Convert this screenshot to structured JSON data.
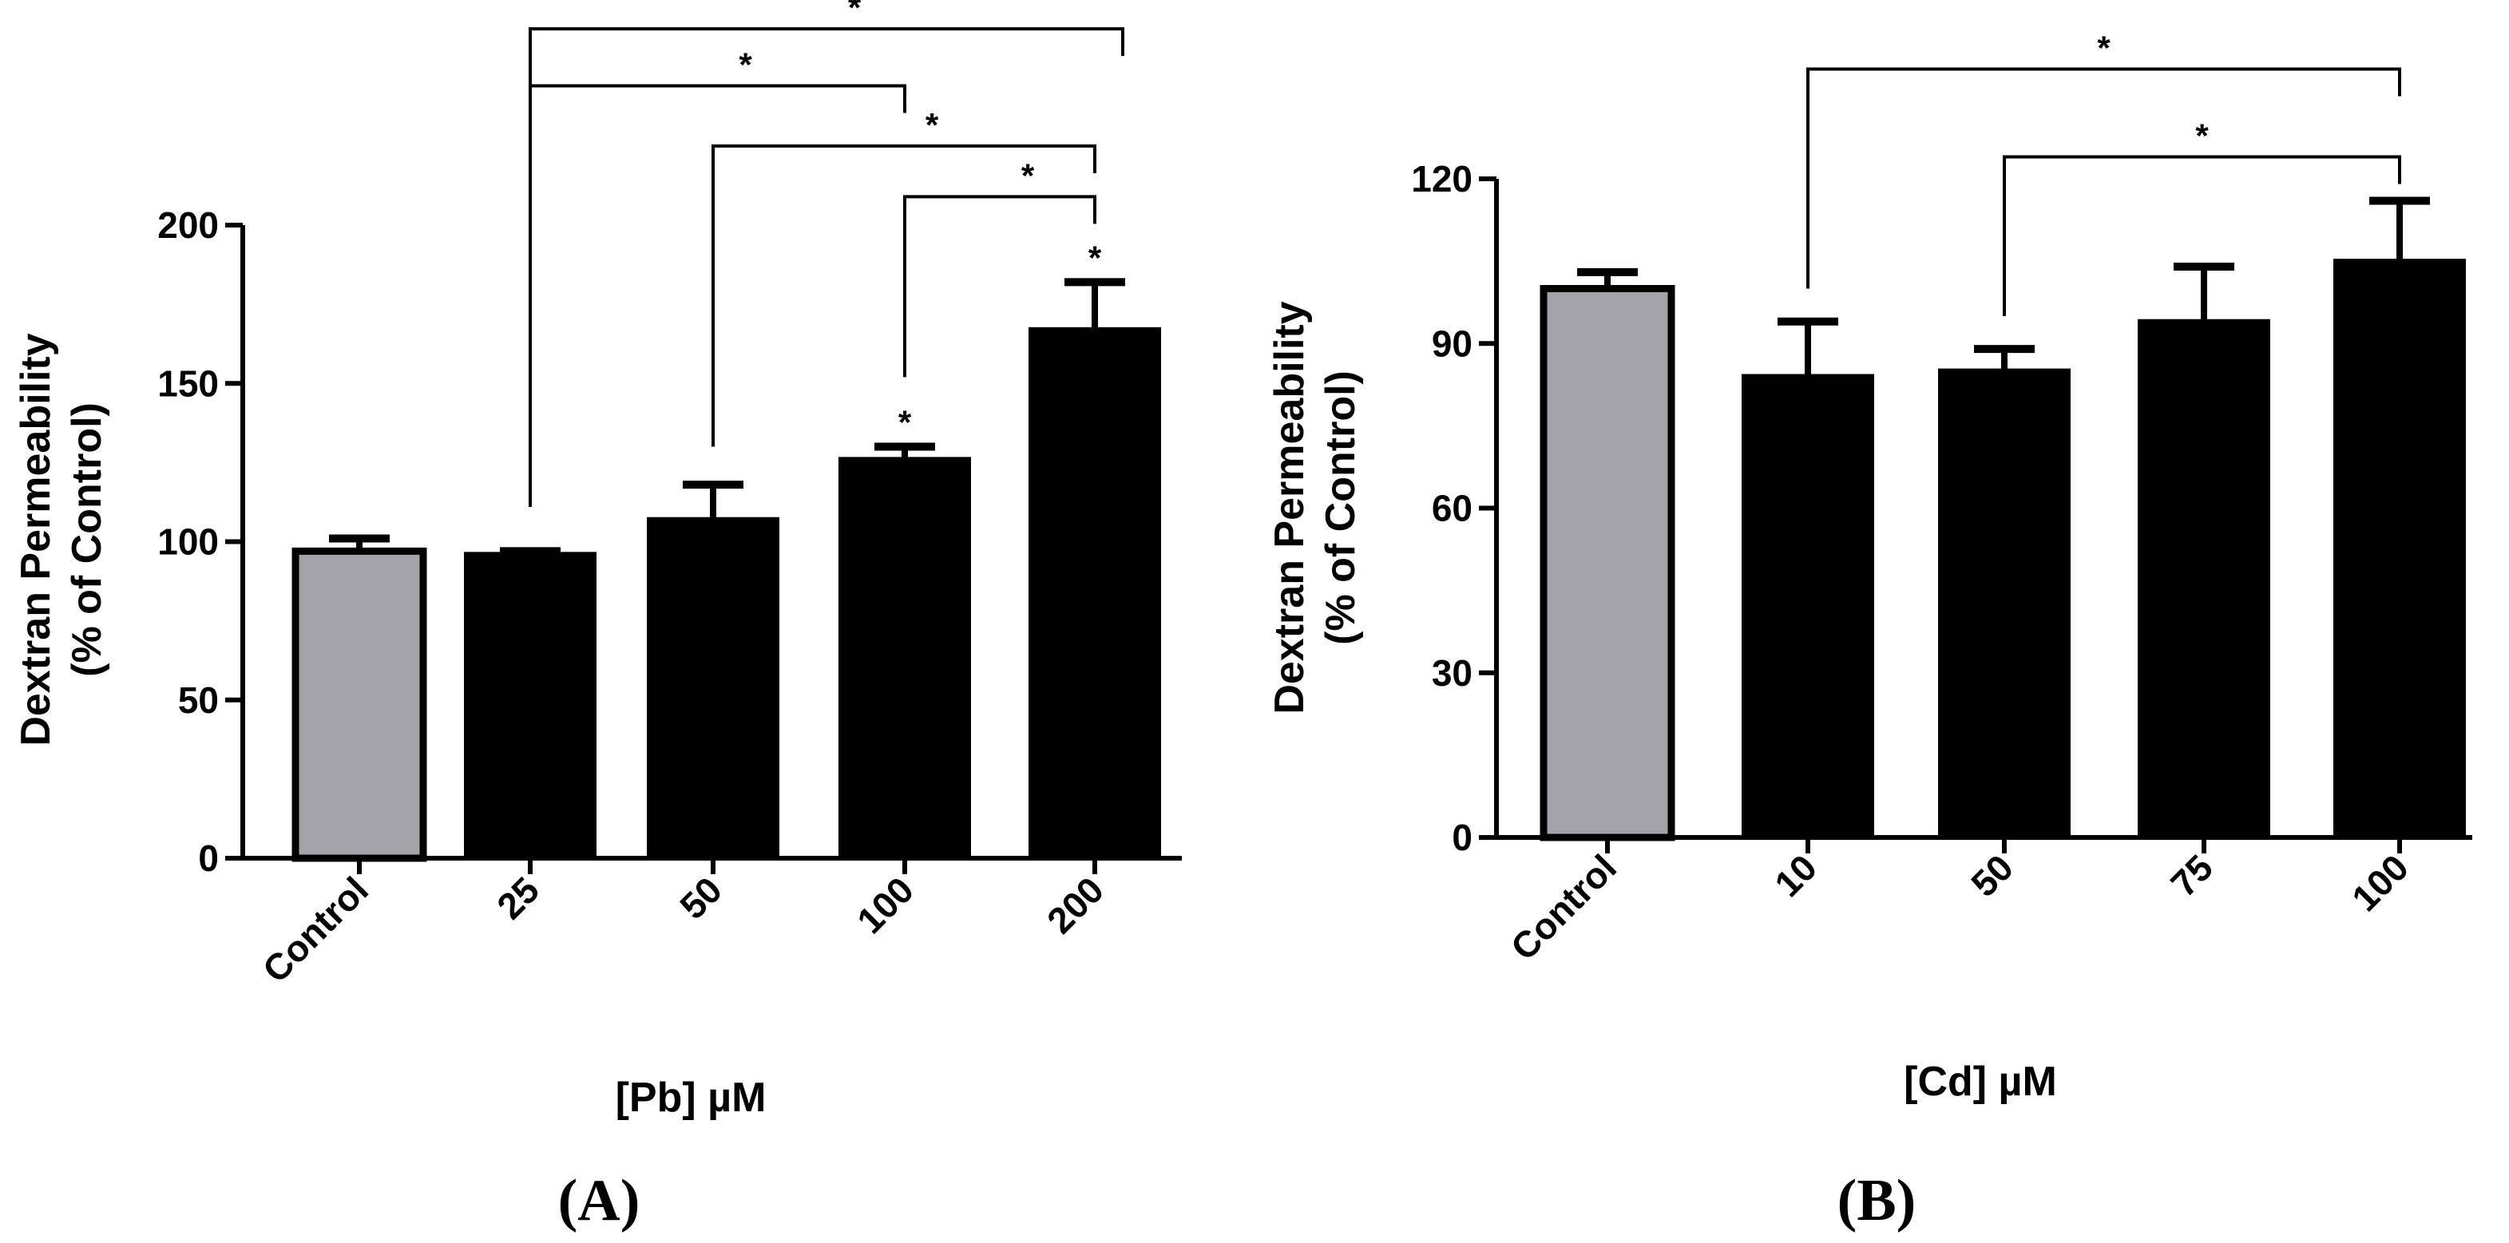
{
  "chart_data": [
    {
      "panel": "(A)",
      "type": "bar",
      "ylabel_line1": "Dextran Permeability",
      "ylabel_line2": "(% of Control)",
      "xlabel": "[Pb] µM",
      "ylim": [
        0,
        200
      ],
      "yticks": [
        0,
        50,
        100,
        150,
        200
      ],
      "categories": [
        "Control",
        "25",
        "50",
        "100",
        "200"
      ],
      "values": [
        97,
        96,
        107,
        126,
        167
      ],
      "errors": [
        4,
        1,
        11,
        4,
        15
      ],
      "colors": [
        "#a4a3a9",
        "#000000",
        "#000000",
        "#000000",
        "#000000"
      ],
      "star_marker": "*",
      "bar_stars": [
        false,
        false,
        false,
        true,
        true
      ],
      "comparisons": [
        {
          "from": 1,
          "to": 4,
          "label": "*"
        },
        {
          "from": 1,
          "to": 3,
          "label": "*"
        },
        {
          "from": 2,
          "to": 4,
          "label": "*"
        },
        {
          "from": 3,
          "to": 4,
          "label": "*"
        }
      ]
    },
    {
      "panel": "(B)",
      "type": "bar",
      "ylabel_line1": "Dextran Permeability",
      "ylabel_line2": "(% of Control)",
      "xlabel": "[Cd] µM",
      "ylim": [
        0,
        120
      ],
      "yticks": [
        0,
        30,
        60,
        90,
        120
      ],
      "categories": [
        "Control",
        "10",
        "50",
        "75",
        "100"
      ],
      "values": [
        100,
        84,
        85,
        94,
        105
      ],
      "errors": [
        3,
        10,
        4,
        10,
        11
      ],
      "colors": [
        "#a4a3a9",
        "#000000",
        "#000000",
        "#000000",
        "#000000"
      ],
      "star_marker": "*",
      "bar_stars": [
        false,
        false,
        false,
        false,
        false
      ],
      "comparisons": [
        {
          "from": 1,
          "to": 4,
          "label": "*"
        },
        {
          "from": 2,
          "to": 4,
          "label": "*"
        }
      ]
    }
  ]
}
